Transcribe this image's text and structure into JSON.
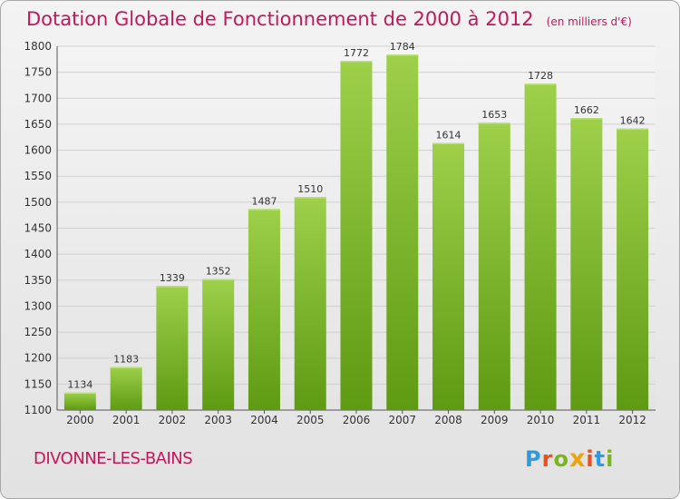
{
  "header": {
    "title": "Dotation Globale de Fonctionnement de 2000 à 2012",
    "unit": "(en milliers d'€)"
  },
  "footer": {
    "commune": "DIVONNE-LES-BAINS",
    "logo_letters": [
      "P",
      "r",
      "o",
      "x",
      "i",
      "t",
      "i"
    ],
    "logo_colors": [
      "#2e9be0",
      "#e8501e",
      "#7ab51d",
      "#f0a20a",
      "#e8501e",
      "#2e9be0",
      "#7ab51d"
    ]
  },
  "chart_data": {
    "type": "bar",
    "title": "Dotation Globale de Fonctionnement de 2000 à 2012",
    "subtitle": "(en milliers d'€)",
    "categories": [
      "2000",
      "2001",
      "2002",
      "2003",
      "2004",
      "2005",
      "2006",
      "2007",
      "2008",
      "2009",
      "2010",
      "2011",
      "2012"
    ],
    "values": [
      1134,
      1183,
      1339,
      1352,
      1487,
      1510,
      1772,
      1784,
      1614,
      1653,
      1728,
      1662,
      1642
    ],
    "ylim": [
      1100,
      1800
    ],
    "yticks": [
      1100,
      1150,
      1200,
      1250,
      1300,
      1350,
      1400,
      1450,
      1500,
      1550,
      1600,
      1650,
      1700,
      1750,
      1800
    ],
    "grid": true,
    "bar_color_top": "#9ed04a",
    "bar_color_bottom": "#5e9a12"
  }
}
